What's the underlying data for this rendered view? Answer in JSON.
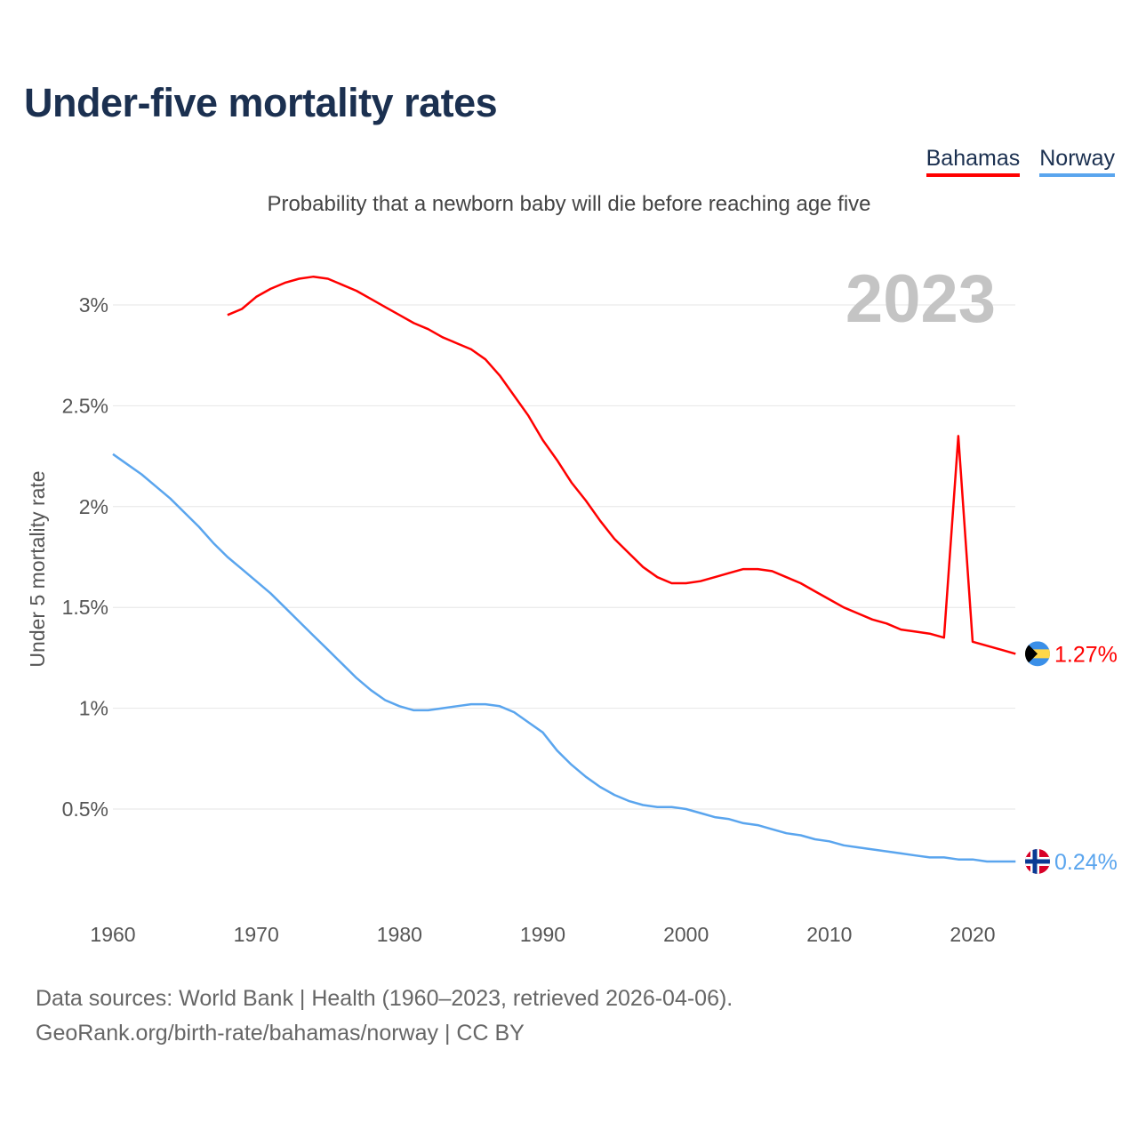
{
  "title": "Under-five mortality rates",
  "subtitle": "Probability that a newborn baby will die before reaching age five",
  "year_label": "2023",
  "footer": {
    "line1": "Data sources: World Bank | Health (1960–2023, retrieved 2026-04-06).",
    "line2": "GeoRank.org/birth-rate/bahamas/norway | CC BY"
  },
  "chart_data": {
    "type": "line",
    "title": "Under-five mortality rates",
    "subtitle": "Probability that a newborn baby will die before reaching age five",
    "xlabel": "",
    "ylabel": "Under 5 mortality rate",
    "xlim": [
      1960,
      2023
    ],
    "ylim": [
      0,
      3.3
    ],
    "x_ticks": [
      1960,
      1970,
      1980,
      1990,
      2000,
      2010,
      2020
    ],
    "x_tick_labels": [
      "1960",
      "1970",
      "1980",
      "1990",
      "2000",
      "2010",
      "2020"
    ],
    "y_ticks": [
      0.5,
      1,
      1.5,
      2,
      2.5,
      3
    ],
    "y_tick_labels": [
      "0.5%",
      "1%",
      "1.5%",
      "2%",
      "2.5%",
      "3%"
    ],
    "grid": true,
    "legend_position": "top-right",
    "series": [
      {
        "name": "Bahamas",
        "color": "#ff0000",
        "flag": "bahamas-flag",
        "end_label": "1.27%",
        "start_year": 1968,
        "values": [
          2.95,
          2.98,
          3.04,
          3.08,
          3.11,
          3.13,
          3.14,
          3.13,
          3.1,
          3.07,
          3.03,
          2.99,
          2.95,
          2.91,
          2.88,
          2.84,
          2.81,
          2.78,
          2.73,
          2.65,
          2.55,
          2.45,
          2.33,
          2.23,
          2.12,
          2.03,
          1.93,
          1.84,
          1.77,
          1.7,
          1.65,
          1.62,
          1.62,
          1.63,
          1.65,
          1.67,
          1.69,
          1.69,
          1.68,
          1.65,
          1.62,
          1.58,
          1.54,
          1.5,
          1.47,
          1.44,
          1.42,
          1.39,
          1.38,
          1.37,
          1.35,
          2.35,
          1.33,
          1.31,
          1.29,
          1.27
        ]
      },
      {
        "name": "Norway",
        "color": "#5aa5ee",
        "flag": "norway-flag",
        "end_label": "0.24%",
        "start_year": 1960,
        "values": [
          2.26,
          2.21,
          2.16,
          2.1,
          2.04,
          1.97,
          1.9,
          1.82,
          1.75,
          1.69,
          1.63,
          1.57,
          1.5,
          1.43,
          1.36,
          1.29,
          1.22,
          1.15,
          1.09,
          1.04,
          1.01,
          0.99,
          0.99,
          1.0,
          1.01,
          1.02,
          1.02,
          1.01,
          0.98,
          0.93,
          0.88,
          0.79,
          0.72,
          0.66,
          0.61,
          0.57,
          0.54,
          0.52,
          0.51,
          0.51,
          0.5,
          0.48,
          0.46,
          0.45,
          0.43,
          0.42,
          0.4,
          0.38,
          0.37,
          0.35,
          0.34,
          0.32,
          0.31,
          0.3,
          0.29,
          0.28,
          0.27,
          0.26,
          0.26,
          0.25,
          0.25,
          0.24,
          0.24,
          0.24
        ]
      }
    ]
  }
}
